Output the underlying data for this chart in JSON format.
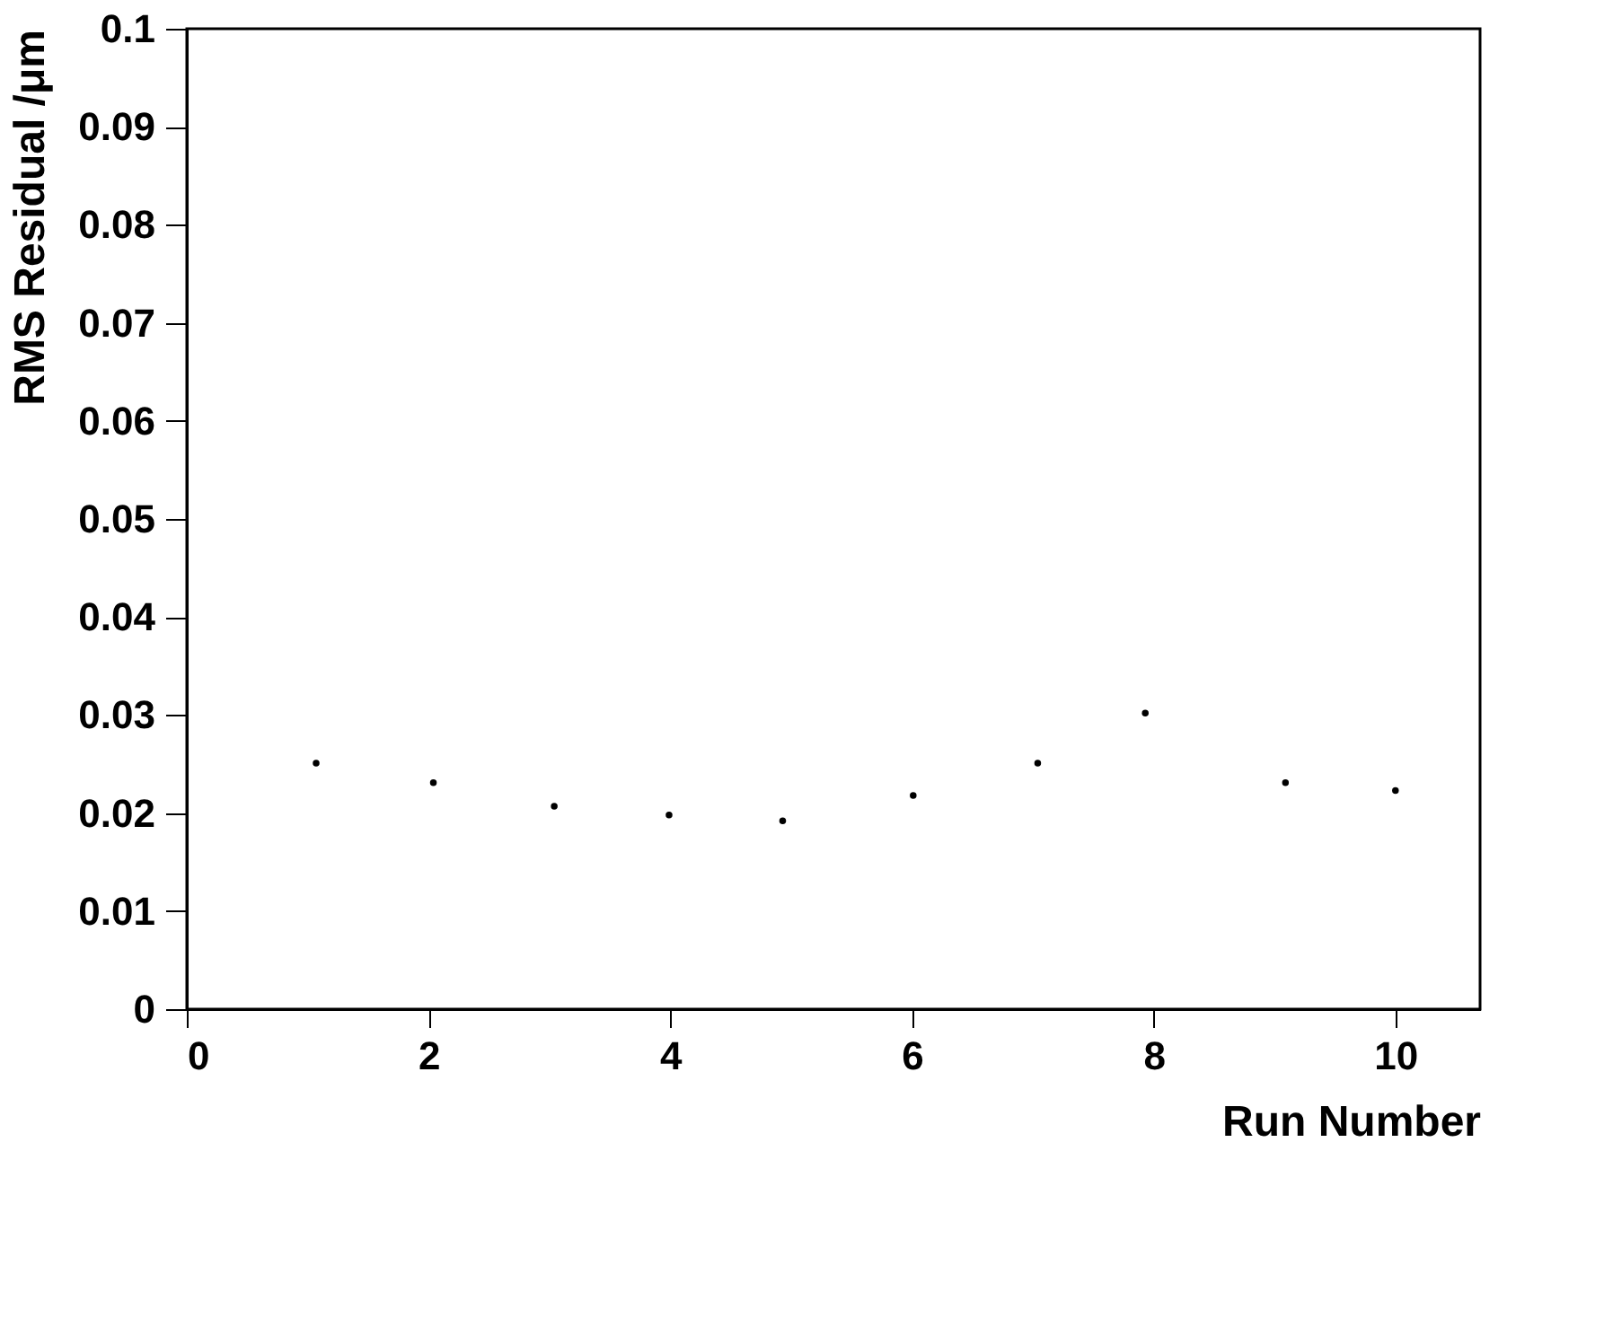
{
  "chart_data": {
    "type": "scatter",
    "xlabel": "Run Number",
    "ylabel": "RMS Residual /μm",
    "x": [
      1.07,
      2.04,
      3.04,
      3.99,
      4.93,
      6.01,
      7.04,
      7.93,
      9.09,
      10.0
    ],
    "series": [
      {
        "color": "#000000",
        "values": [
          0.0251,
          0.0231,
          0.0207,
          0.0198,
          0.0192,
          0.0218,
          0.0251,
          0.0302,
          0.0231,
          0.0223
        ]
      }
    ],
    "xlim": [
      0,
      10.7
    ],
    "xticks": [
      0,
      2,
      4,
      6,
      8,
      10
    ],
    "ylim": [
      0,
      0.1
    ],
    "yticks": [
      0,
      0.01,
      0.02,
      0.03,
      0.04,
      0.05,
      0.06,
      0.07,
      0.08,
      0.09,
      0.1
    ],
    "marker": "circle",
    "grid": false,
    "legend": false
  }
}
